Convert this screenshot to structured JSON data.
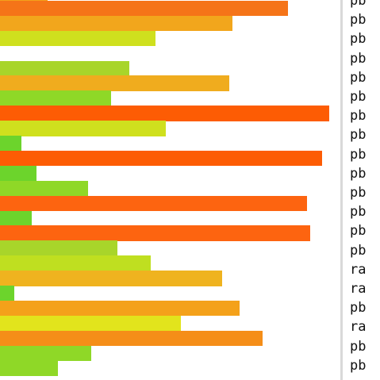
{
  "chart_data": {
    "type": "bar",
    "orientation": "horizontal",
    "xlim": [
      0,
      415
    ],
    "bars": [
      {
        "value": 60,
        "color": "#f4a11a"
      },
      {
        "value": 363,
        "color": "#f57418"
      },
      {
        "value": 293,
        "color": "#f2a61c"
      },
      {
        "value": 196,
        "color": "#cfe01e"
      },
      {
        "value": 0,
        "color": "#ffffff"
      },
      {
        "value": 163,
        "color": "#a8d52a"
      },
      {
        "value": 289,
        "color": "#f0ac1e"
      },
      {
        "value": 140,
        "color": "#8fd827"
      },
      {
        "value": 415,
        "color": "#fd5c04"
      },
      {
        "value": 209,
        "color": "#cfe01e"
      },
      {
        "value": 27,
        "color": "#6cd42c"
      },
      {
        "value": 406,
        "color": "#fd5c04"
      },
      {
        "value": 46,
        "color": "#6cd42c"
      },
      {
        "value": 111,
        "color": "#8fd827"
      },
      {
        "value": 387,
        "color": "#fd6410"
      },
      {
        "value": 40,
        "color": "#6cd42c"
      },
      {
        "value": 391,
        "color": "#fd6410"
      },
      {
        "value": 148,
        "color": "#a8d52a"
      },
      {
        "value": 190,
        "color": "#bfdf20"
      },
      {
        "value": 280,
        "color": "#efb31f"
      },
      {
        "value": 18,
        "color": "#6cd42c"
      },
      {
        "value": 302,
        "color": "#f4a11a"
      },
      {
        "value": 228,
        "color": "#e2e41c"
      },
      {
        "value": 331,
        "color": "#f58e18"
      },
      {
        "value": 115,
        "color": "#8fd827"
      },
      {
        "value": 73,
        "color": "#8fd827"
      }
    ]
  },
  "labels": [
    "pb",
    "pb",
    "pb",
    "pb",
    "pb",
    "pb",
    "pb",
    "pb",
    "pb",
    "pb",
    "pb",
    "pb",
    "pb",
    "pb",
    "ra",
    "ra",
    "pb",
    "ra",
    "pb",
    "pb"
  ]
}
